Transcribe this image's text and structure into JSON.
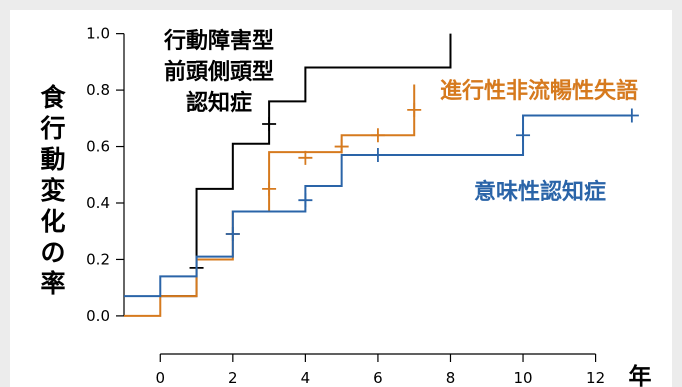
{
  "chart_data": {
    "type": "line",
    "step": true,
    "ylabel": "食行動変化の率",
    "xlabel": "年",
    "xlim": [
      -1,
      13.5
    ],
    "ylim": [
      -0.05,
      1.02
    ],
    "xticks": [
      0,
      2,
      4,
      6,
      8,
      10,
      12
    ],
    "yticks": [
      0.0,
      0.2,
      0.4,
      0.6,
      0.8,
      1.0
    ],
    "ytick_labels": [
      "0.0",
      "0.2",
      "0.4",
      "0.6",
      "0.8",
      "1.0"
    ],
    "grid": false,
    "series": [
      {
        "name": "行動障害型前頭側頭型認知症",
        "label_lines": [
          "行動障害型",
          "前頭側頭型",
          "認知症"
        ],
        "color": "#000000",
        "x": [
          0,
          1,
          2,
          3,
          4,
          8
        ],
        "y": [
          0.07,
          0.45,
          0.61,
          0.76,
          0.88,
          1.0
        ],
        "end_x": 8,
        "censor_x": [
          1,
          3
        ],
        "censor_y": [
          0.17,
          0.68
        ]
      },
      {
        "name": "進行性非流暢性失語",
        "label_lines": [
          "進行性非流暢性失語"
        ],
        "color": "#d67a1e",
        "x": [
          -1,
          0,
          1,
          2,
          3,
          4,
          5,
          6,
          7
        ],
        "y": [
          0.0,
          0.07,
          0.2,
          0.37,
          0.58,
          0.58,
          0.64,
          0.64,
          0.82
        ],
        "end_x": 7,
        "censor_x": [
          2,
          3,
          4,
          5,
          6,
          7
        ],
        "censor_y": [
          0.29,
          0.45,
          0.56,
          0.6,
          0.64,
          0.73
        ]
      },
      {
        "name": "意味性認知症",
        "label_lines": [
          "意味性認知症"
        ],
        "color": "#2a64a8",
        "x": [
          -1,
          0,
          1,
          2,
          3,
          4,
          5,
          10
        ],
        "y": [
          0.07,
          0.14,
          0.21,
          0.37,
          0.37,
          0.46,
          0.57,
          0.71
        ],
        "end_x": 13,
        "censor_x": [
          2,
          4,
          6,
          10,
          13
        ],
        "censor_y": [
          0.29,
          0.41,
          0.57,
          0.64,
          0.71
        ]
      }
    ]
  }
}
